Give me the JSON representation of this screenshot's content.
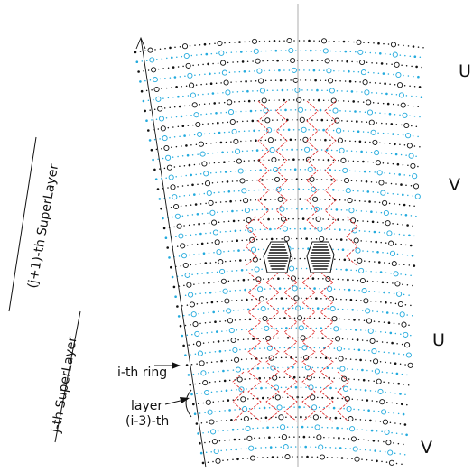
{
  "labels": {
    "u_top": "U",
    "v_top": "V",
    "u_bottom": "U",
    "v_bottom": "V",
    "superlayer_upper": "(j+1)-th  SuperLayer",
    "superlayer_lower": "j-th  SuperLayer",
    "ring": "i-th ring",
    "layer_line1": "layer",
    "layer_line2": "(i-3)-th"
  },
  "colors": {
    "ink": "#111111",
    "stereo_wire": "#22aadd",
    "cell_boundary": "#e02020",
    "axis": "#999999"
  }
}
